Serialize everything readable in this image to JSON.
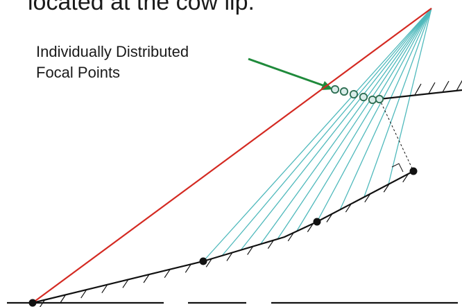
{
  "header": {
    "text": "located at the cow lip."
  },
  "annotation": {
    "line1": "Individually Distributed",
    "line2": "Focal Points"
  },
  "colors": {
    "red_line": "#d42a22",
    "fan_lines": "#4fb9bc",
    "arrow": "#1f8a3b",
    "ink": "#111111",
    "focal_fill": "#d9ece9",
    "focal_stroke": "#2d6e52"
  }
}
